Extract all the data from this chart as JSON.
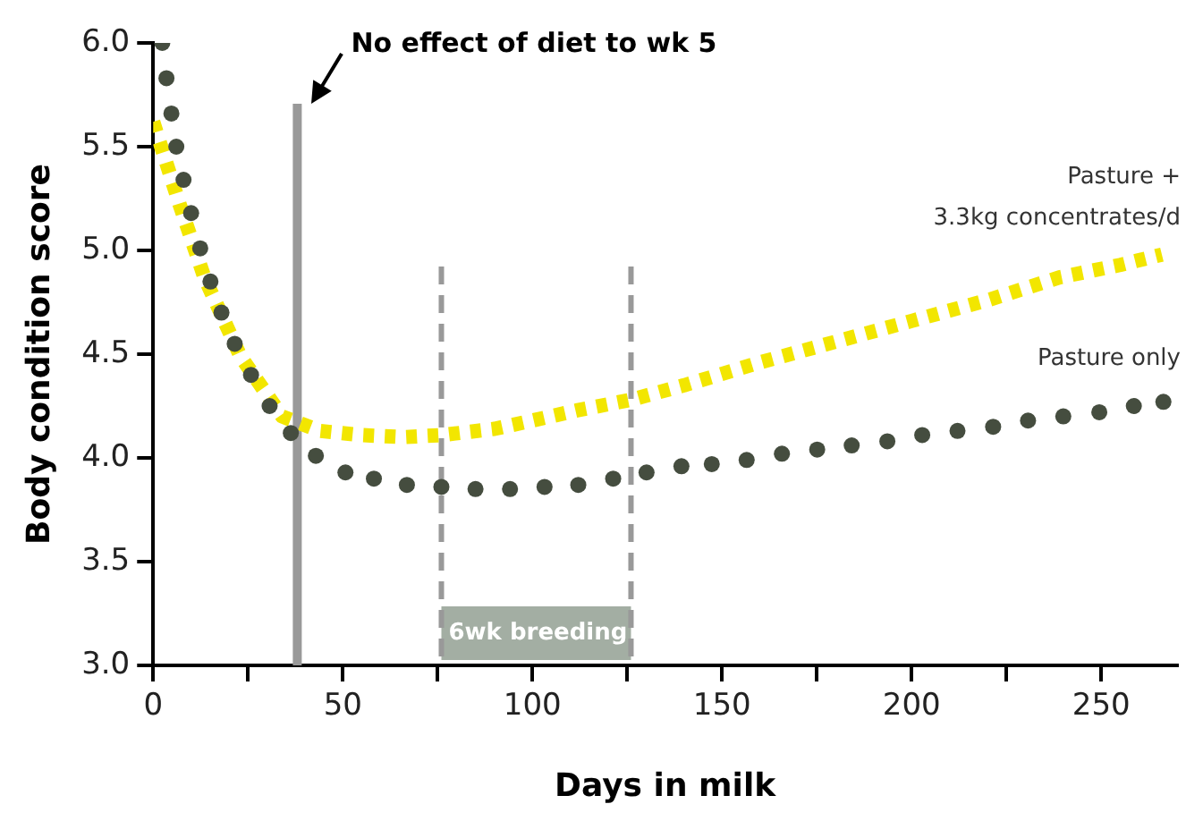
{
  "chart_data": {
    "type": "line",
    "xlabel": "Days in milk",
    "ylabel": "Body condition score",
    "xlim": [
      0,
      270
    ],
    "xticks": [
      0,
      {
        "value": 25,
        "label": null
      },
      50,
      {
        "value": 75,
        "label": null
      },
      100,
      {
        "value": 125,
        "label": null
      },
      150,
      {
        "value": 175,
        "label": null
      },
      200,
      {
        "value": 225,
        "label": null
      },
      250
    ],
    "ylim": [
      3.0,
      6.0
    ],
    "yticks": [
      {
        "value": 3.0,
        "label": "3.0"
      },
      3.5,
      {
        "value": 4.0,
        "label": "4.0"
      },
      4.5,
      {
        "value": 5.0,
        "label": "5.0"
      },
      5.5,
      {
        "value": 6.0,
        "label": "6.0"
      }
    ],
    "grid": false,
    "legend": false,
    "series": [
      {
        "name": "Pasture +\n3.3kg concentrates/d",
        "type": "line",
        "line_style": "dotted",
        "marker": "none",
        "color": "#f2e600",
        "x": [
          0,
          7,
          13.5,
          23,
          34,
          44,
          55,
          66,
          76,
          90,
          100,
          112,
          126,
          140,
          160,
          180,
          200,
          220,
          239,
          255,
          266
        ],
        "values": [
          5.62,
          5.22,
          4.87,
          4.49,
          4.2,
          4.13,
          4.11,
          4.1,
          4.11,
          4.14,
          4.18,
          4.23,
          4.28,
          4.35,
          4.46,
          4.56,
          4.66,
          4.76,
          4.87,
          4.93,
          4.98
        ]
      },
      {
        "name": "Pasture only",
        "type": "scatter",
        "marker": "circle",
        "color": "#454d3f",
        "x": [
          2.4,
          3.5,
          4.8,
          6.1,
          8,
          10,
          12.4,
          15.1,
          18,
          21.5,
          25.8,
          30.7,
          36.3,
          42.9,
          50.7,
          58.2,
          66.9,
          76,
          85,
          94.1,
          103.2,
          112.1,
          121.3,
          130.1,
          139.3,
          147.3,
          156.5,
          165.8,
          175.1,
          184.2,
          193.6,
          202.8,
          212.1,
          221.5,
          230.7,
          240,
          249.5,
          258.6,
          266.4
        ],
        "values": [
          6.0,
          5.83,
          5.66,
          5.5,
          5.34,
          5.18,
          5.01,
          4.85,
          4.7,
          4.55,
          4.4,
          4.25,
          4.12,
          4.01,
          3.93,
          3.9,
          3.87,
          3.86,
          3.85,
          3.85,
          3.86,
          3.87,
          3.9,
          3.93,
          3.96,
          3.97,
          3.99,
          4.02,
          4.04,
          4.06,
          4.08,
          4.11,
          4.13,
          4.15,
          4.18,
          4.2,
          4.22,
          4.25,
          4.27
        ]
      }
    ],
    "ref_lines": [
      {
        "axis": "x",
        "value": 38,
        "color": "#999999",
        "line_style": "solid"
      },
      {
        "axis": "x",
        "value": 76,
        "color": "#999999",
        "line_style": "dashed"
      },
      {
        "axis": "x",
        "value": 126,
        "color": "#999999",
        "line_style": "dashed"
      }
    ],
    "bands": [
      {
        "axis": "x",
        "from": 76,
        "to": 126,
        "label": "6wk breeding",
        "color": "#a3aea3"
      }
    ],
    "annotations": [
      "No effect of diet to wk 5"
    ]
  }
}
